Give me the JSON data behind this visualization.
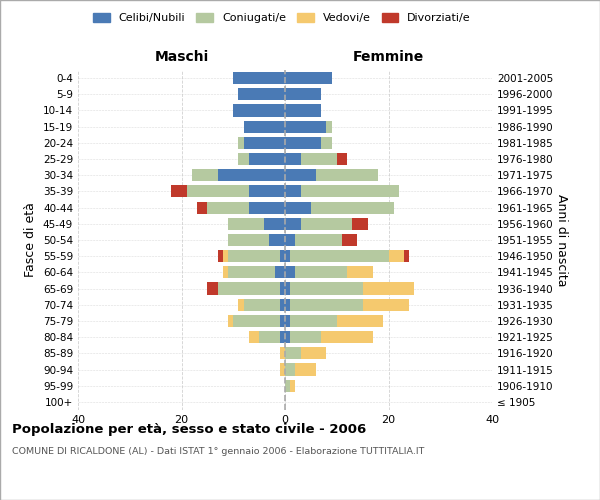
{
  "age_groups": [
    "100+",
    "95-99",
    "90-94",
    "85-89",
    "80-84",
    "75-79",
    "70-74",
    "65-69",
    "60-64",
    "55-59",
    "50-54",
    "45-49",
    "40-44",
    "35-39",
    "30-34",
    "25-29",
    "20-24",
    "15-19",
    "10-14",
    "5-9",
    "0-4"
  ],
  "birth_years": [
    "≤ 1905",
    "1906-1910",
    "1911-1915",
    "1916-1920",
    "1921-1925",
    "1926-1930",
    "1931-1935",
    "1936-1940",
    "1941-1945",
    "1946-1950",
    "1951-1955",
    "1956-1960",
    "1961-1965",
    "1966-1970",
    "1971-1975",
    "1976-1980",
    "1981-1985",
    "1986-1990",
    "1991-1995",
    "1996-2000",
    "2001-2005"
  ],
  "colors": {
    "celibi": "#4a7ab5",
    "coniugati": "#b5c9a0",
    "vedovi": "#f5c96e",
    "divorziati": "#c0392b"
  },
  "males": {
    "celibi": [
      0,
      0,
      0,
      0,
      1,
      1,
      1,
      1,
      2,
      1,
      3,
      4,
      7,
      7,
      13,
      7,
      8,
      8,
      10,
      9,
      10
    ],
    "coniugati": [
      0,
      0,
      0,
      0,
      4,
      9,
      7,
      12,
      9,
      10,
      8,
      7,
      8,
      12,
      5,
      2,
      1,
      0,
      0,
      0,
      0
    ],
    "vedovi": [
      0,
      0,
      1,
      1,
      2,
      1,
      1,
      0,
      1,
      1,
      0,
      0,
      0,
      0,
      0,
      0,
      0,
      0,
      0,
      0,
      0
    ],
    "divorziati": [
      0,
      0,
      0,
      0,
      0,
      0,
      0,
      2,
      0,
      1,
      0,
      0,
      2,
      3,
      0,
      0,
      0,
      0,
      0,
      0,
      0
    ]
  },
  "females": {
    "celibi": [
      0,
      0,
      0,
      0,
      1,
      1,
      1,
      1,
      2,
      1,
      2,
      3,
      5,
      3,
      6,
      3,
      7,
      8,
      7,
      7,
      9
    ],
    "coniugati": [
      0,
      1,
      2,
      3,
      6,
      9,
      14,
      14,
      10,
      19,
      9,
      10,
      16,
      19,
      12,
      7,
      2,
      1,
      0,
      0,
      0
    ],
    "vedovi": [
      0,
      1,
      4,
      5,
      10,
      9,
      9,
      10,
      5,
      3,
      0,
      0,
      0,
      0,
      0,
      0,
      0,
      0,
      0,
      0,
      0
    ],
    "divorziati": [
      0,
      0,
      0,
      0,
      0,
      0,
      0,
      0,
      0,
      1,
      3,
      3,
      0,
      0,
      0,
      2,
      0,
      0,
      0,
      0,
      0
    ]
  },
  "xlim": 40,
  "title": "Popolazione per età, sesso e stato civile - 2006",
  "subtitle": "COMUNE DI RICALDONE (AL) - Dati ISTAT 1° gennaio 2006 - Elaborazione TUTTITALIA.IT",
  "ylabel_left": "Fasce di età",
  "ylabel_right": "Anni di nascita",
  "xlabel_left": "Maschi",
  "xlabel_right": "Femmine",
  "grid_color": "#cccccc",
  "legend_labels": [
    "Celibi/Nubili",
    "Coniugati/e",
    "Vedovi/e",
    "Divorziati/e"
  ]
}
